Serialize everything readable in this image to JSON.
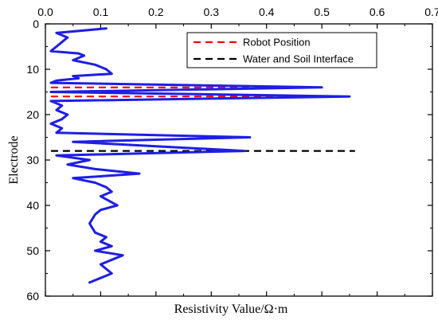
{
  "chart_data": {
    "type": "line",
    "title": "",
    "xlabel": "Resistivity Value/Ω·m",
    "ylabel": "Electrode",
    "xlim": [
      0,
      0.7
    ],
    "ylim": [
      0,
      60
    ],
    "x_axis_position": "top",
    "y_axis_inverted": true,
    "x_ticks": [
      "0.0",
      "0.1",
      "0.2",
      "0.3",
      "0.4",
      "0.5",
      "0.6",
      "0.7"
    ],
    "y_ticks": [
      "0",
      "10",
      "20",
      "30",
      "40",
      "50",
      "60"
    ],
    "grid": false,
    "legend_position": "top-right",
    "series": [
      {
        "color": "#1e1ee6",
        "style": "solid",
        "points": [
          [
            0.11,
            1
          ],
          [
            0.02,
            2
          ],
          [
            0.04,
            3
          ],
          [
            0.03,
            4
          ],
          [
            0.02,
            5
          ],
          [
            0.01,
            6
          ],
          [
            0.06,
            6.5
          ],
          [
            0.07,
            7
          ],
          [
            0.05,
            8
          ],
          [
            0.09,
            9
          ],
          [
            0.11,
            10
          ],
          [
            0.12,
            11
          ],
          [
            0.05,
            11.5
          ],
          [
            0.06,
            12
          ],
          [
            0.02,
            12.5
          ],
          [
            0.01,
            13
          ],
          [
            0.5,
            14
          ],
          [
            0.01,
            15
          ],
          [
            0.55,
            16
          ],
          [
            0.01,
            17
          ],
          [
            0.03,
            18
          ],
          [
            0.02,
            19
          ],
          [
            0.04,
            20
          ],
          [
            0.03,
            21
          ],
          [
            0.01,
            22
          ],
          [
            0.03,
            23
          ],
          [
            0.02,
            24
          ],
          [
            0.37,
            25
          ],
          [
            0.05,
            26
          ],
          [
            0.36,
            28
          ],
          [
            0.02,
            29
          ],
          [
            0.08,
            30
          ],
          [
            0.04,
            31
          ],
          [
            0.09,
            32
          ],
          [
            0.17,
            33
          ],
          [
            0.05,
            34
          ],
          [
            0.09,
            35
          ],
          [
            0.11,
            36
          ],
          [
            0.12,
            37
          ],
          [
            0.1,
            38
          ],
          [
            0.13,
            40
          ],
          [
            0.1,
            41
          ],
          [
            0.09,
            42
          ],
          [
            0.08,
            44
          ],
          [
            0.09,
            46
          ],
          [
            0.11,
            47
          ],
          [
            0.1,
            48
          ],
          [
            0.12,
            49
          ],
          [
            0.09,
            50
          ],
          [
            0.14,
            51
          ],
          [
            0.1,
            53
          ],
          [
            0.12,
            55
          ],
          [
            0.1,
            56
          ],
          [
            0.08,
            57
          ]
        ]
      }
    ],
    "reference_lines": [
      {
        "name": "Robot Position",
        "color": "#ff0000",
        "style": "dashed",
        "y": 14,
        "x_range": [
          0.01,
          0.5
        ]
      },
      {
        "name": "Robot Position",
        "color": "#ff0000",
        "style": "dashed",
        "y": 16,
        "x_range": [
          0.01,
          0.53
        ]
      },
      {
        "name": "Water and Soil Interface",
        "color": "#000000",
        "style": "dashed",
        "y": 28,
        "x_range": [
          0.01,
          0.56
        ]
      }
    ],
    "legend": [
      {
        "label": "Robot Position",
        "color": "#ff0000",
        "style": "dashed"
      },
      {
        "label": "Water and Soil Interface",
        "color": "#000000",
        "style": "dashed"
      }
    ]
  }
}
